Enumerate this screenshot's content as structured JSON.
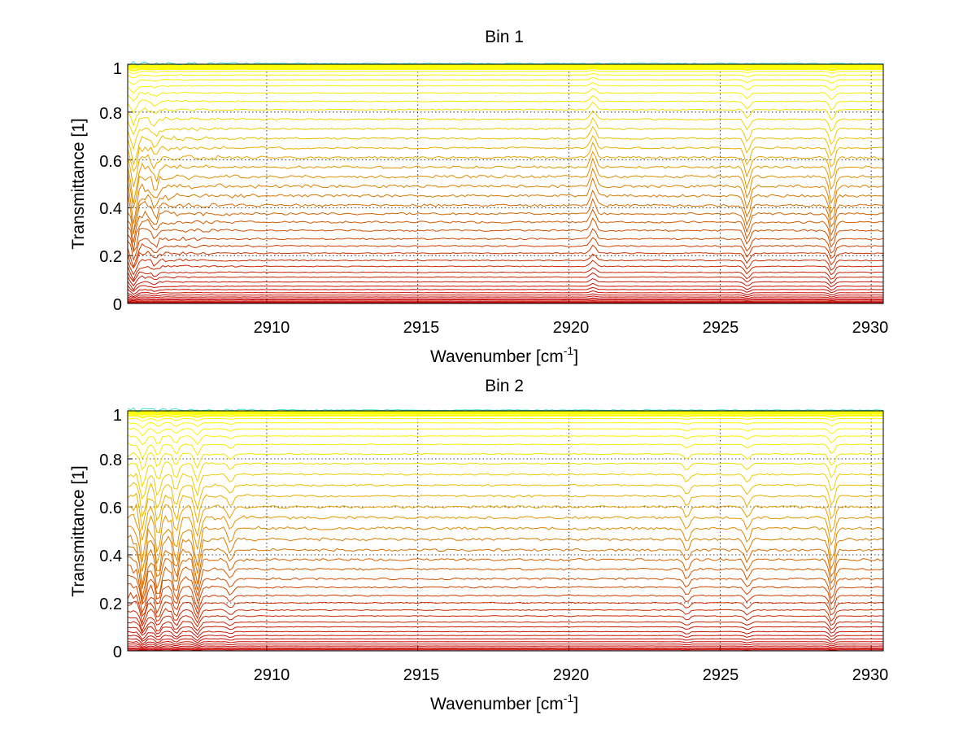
{
  "figure": {
    "background": "#ffffff"
  },
  "chart_data": [
    {
      "type": "line",
      "title": "Bin 1",
      "xlabel": "Wavenumber [cm",
      "xlabel_sup": "-1",
      "xlabel_end": "]",
      "ylabel": "Transmittance [1]",
      "xlim": [
        2905.4,
        2930.4
      ],
      "ylim": [
        0,
        1
      ],
      "xticks": [
        2910,
        2915,
        2920,
        2925,
        2930
      ],
      "xtick_labels": [
        "2910",
        "2915",
        "2920",
        "2925",
        "2930"
      ],
      "yticks": [
        0,
        0.2,
        0.4,
        0.6,
        0.8,
        1
      ],
      "ytick_labels": [
        "0",
        "0.2",
        "0.4",
        "0.6",
        "0.8",
        "1"
      ],
      "grid": "dotted",
      "series_count": 44,
      "series_levels": [
        0.0,
        0.003,
        0.006,
        0.01,
        0.015,
        0.02,
        0.027,
        0.035,
        0.045,
        0.058,
        0.072,
        0.09,
        0.11,
        0.13,
        0.155,
        0.18,
        0.21,
        0.24,
        0.27,
        0.305,
        0.34,
        0.375,
        0.41,
        0.45,
        0.49,
        0.53,
        0.57,
        0.61,
        0.65,
        0.69,
        0.73,
        0.77,
        0.81,
        0.845,
        0.88,
        0.91,
        0.935,
        0.955,
        0.97,
        0.98,
        0.987,
        0.992,
        0.995,
        0.998
      ],
      "absorption_features": [
        {
          "x": 2905.6,
          "depth": 0.08
        },
        {
          "x": 2906.3,
          "depth": 0.03
        },
        {
          "x": 2920.8,
          "depth": -0.04
        },
        {
          "x": 2925.9,
          "depth": 0.05
        },
        {
          "x": 2928.7,
          "depth": 0.06
        }
      ],
      "colormap": [
        "#c40000",
        "#cc3300",
        "#d46a00",
        "#e6a000",
        "#f2e000",
        "#ffff00"
      ],
      "top_edge_color": "#40e0d0"
    },
    {
      "type": "line",
      "title": "Bin 2",
      "xlabel": "Wavenumber [cm",
      "xlabel_sup": "-1",
      "xlabel_end": "]",
      "ylabel": "Transmittance [1]",
      "xlim": [
        2905.4,
        2930.4
      ],
      "ylim": [
        0,
        1
      ],
      "xticks": [
        2910,
        2915,
        2920,
        2925,
        2930
      ],
      "xtick_labels": [
        "2910",
        "2915",
        "2920",
        "2925",
        "2930"
      ],
      "yticks": [
        0,
        0.2,
        0.4,
        0.6,
        0.8,
        1
      ],
      "ytick_labels": [
        "0",
        "0.2",
        "0.4",
        "0.6",
        "0.8",
        "1"
      ],
      "grid": "dotted",
      "series_count": 40,
      "series_levels": [
        0.0,
        0.004,
        0.008,
        0.013,
        0.02,
        0.028,
        0.038,
        0.05,
        0.064,
        0.08,
        0.1,
        0.12,
        0.145,
        0.17,
        0.2,
        0.23,
        0.265,
        0.3,
        0.34,
        0.38,
        0.42,
        0.465,
        0.51,
        0.555,
        0.6,
        0.645,
        0.69,
        0.735,
        0.78,
        0.82,
        0.86,
        0.895,
        0.925,
        0.95,
        0.968,
        0.98,
        0.988,
        0.993,
        0.996,
        0.999
      ],
      "absorption_features": [
        {
          "x": 2905.9,
          "depth": 0.1
        },
        {
          "x": 2906.4,
          "depth": 0.08
        },
        {
          "x": 2907.0,
          "depth": 0.07
        },
        {
          "x": 2907.7,
          "depth": 0.08
        },
        {
          "x": 2908.8,
          "depth": 0.03
        },
        {
          "x": 2923.9,
          "depth": 0.03
        },
        {
          "x": 2925.9,
          "depth": 0.03
        },
        {
          "x": 2928.7,
          "depth": 0.07
        }
      ],
      "colormap": [
        "#c40000",
        "#cc3300",
        "#d46a00",
        "#e6a000",
        "#f2e000",
        "#ffff00"
      ],
      "top_edge_color": "#40e0d0"
    }
  ]
}
